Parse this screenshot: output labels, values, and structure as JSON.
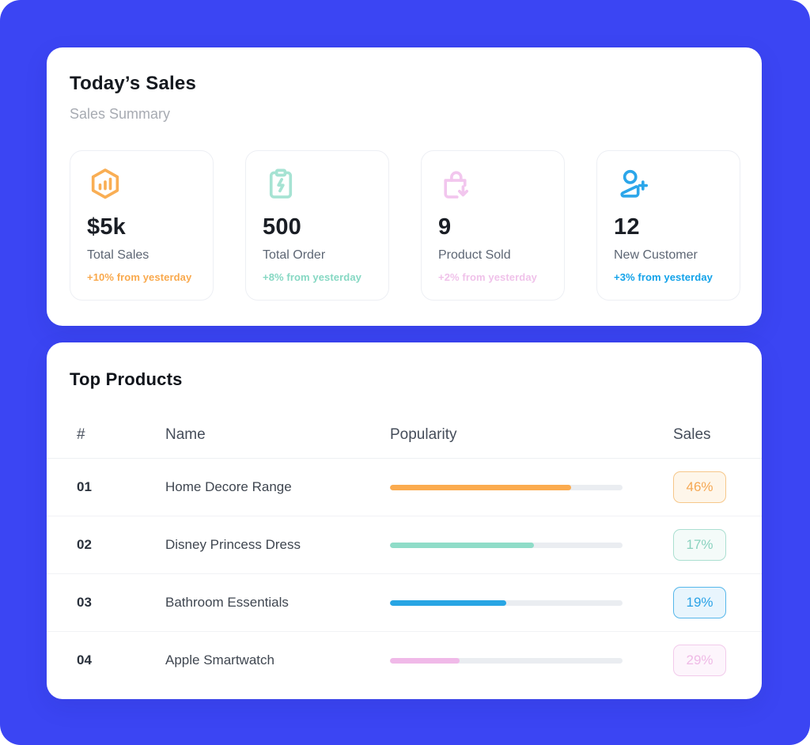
{
  "app": {
    "background": "#3b45f3"
  },
  "sales_summary": {
    "title": "Today’s Sales",
    "subtitle": "Sales Summary",
    "stats": [
      {
        "icon": "hexagon-chart-icon",
        "icon_color": "#f9ae54",
        "value": "$5k",
        "label": "Total Sales",
        "change": "+10% from yesterday",
        "change_color": "#f9a94d"
      },
      {
        "icon": "clipboard-bolt-icon",
        "icon_color": "#a6e3d3",
        "value": "500",
        "label": "Total Order",
        "change": "+8% from yesterday",
        "change_color": "#86d8c3"
      },
      {
        "icon": "bag-arrow-down-icon",
        "icon_color": "#f2c6ee",
        "value": "9",
        "label": "Product Sold",
        "change": "+2% from yesterday",
        "change_color": "#f0c2ea"
      },
      {
        "icon": "user-plus-icon",
        "icon_color": "#2ba6ea",
        "value": "12",
        "label": "New Customer",
        "change": "+3% from yesterday",
        "change_color": "#12a2e9"
      }
    ]
  },
  "top_products": {
    "title": "Top Products",
    "columns": [
      "#",
      "Name",
      "Popularity",
      "Sales"
    ],
    "track_color": "#eaedf1",
    "rows": [
      {
        "num": "01",
        "name": "Home Decore Range",
        "popularity_pct": 78,
        "bar_color": "#fbab4f",
        "sales": "46%",
        "badge_text": "#f5a854",
        "badge_border": "#f6c78a",
        "badge_bg": "#fef6ea"
      },
      {
        "num": "02",
        "name": "Disney Princess Dress",
        "popularity_pct": 62,
        "bar_color": "#8fdcc8",
        "sales": "17%",
        "badge_text": "#8ad2bf",
        "badge_border": "#abdfd1",
        "badge_bg": "#f4fbf9"
      },
      {
        "num": "03",
        "name": "Bathroom Essentials",
        "popularity_pct": 50,
        "bar_color": "#28a5e4",
        "sales": "19%",
        "badge_text": "#2aa2e6",
        "badge_border": "#56b7ea",
        "badge_bg": "#e8f5fd"
      },
      {
        "num": "04",
        "name": "Apple Smartwatch",
        "popularity_pct": 30,
        "bar_color": "#f0b9e8",
        "sales": "29%",
        "badge_text": "#efbae6",
        "badge_border": "#f2cbeb",
        "badge_bg": "#fdf5fc"
      }
    ]
  }
}
